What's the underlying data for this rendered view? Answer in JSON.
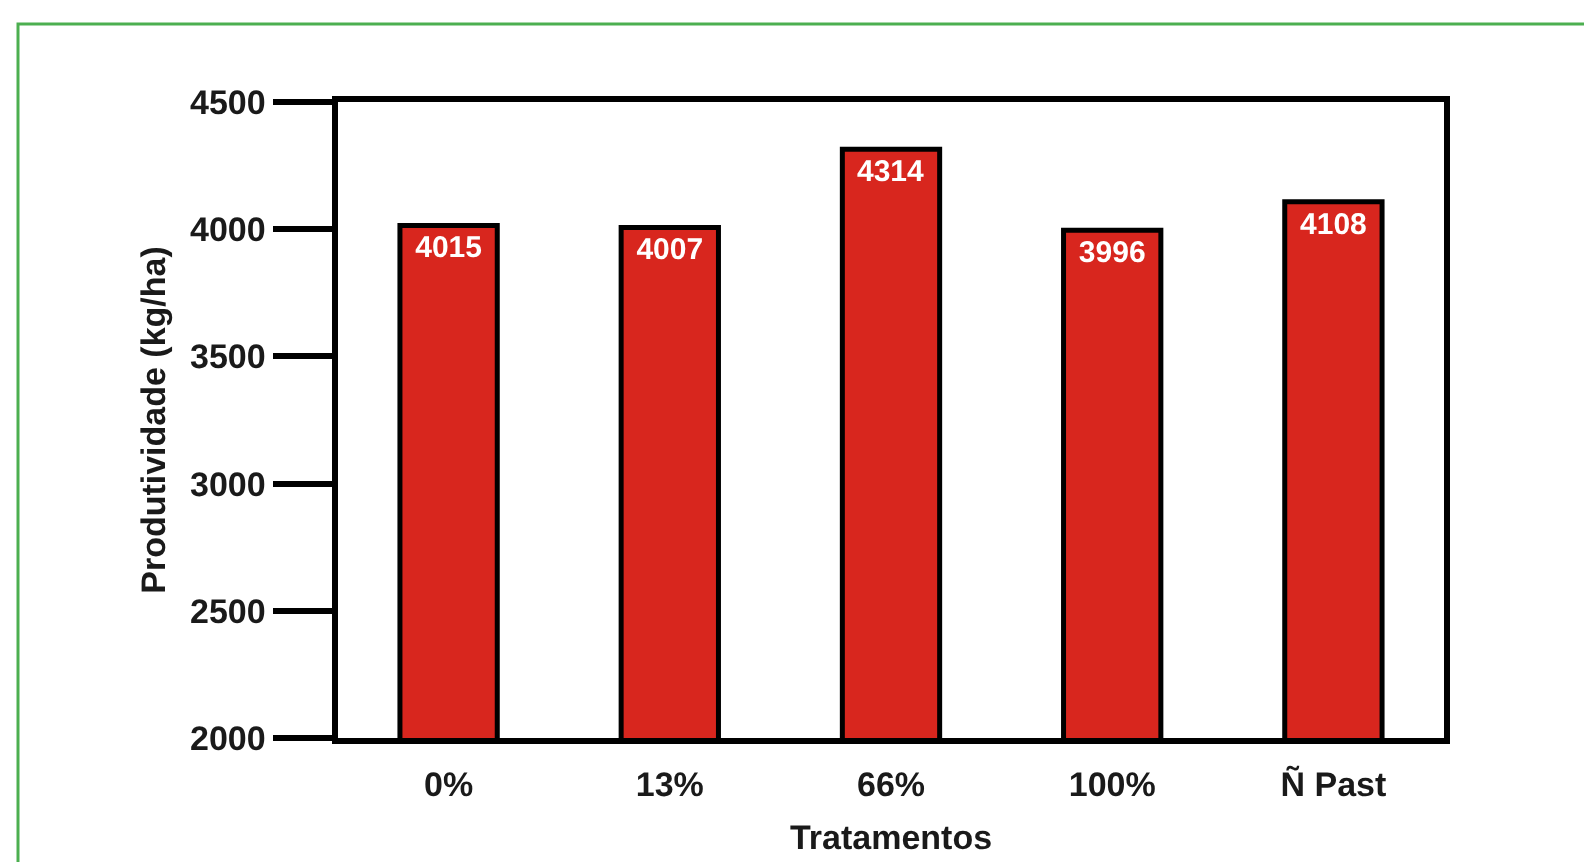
{
  "chart_data": {
    "type": "bar",
    "xlabel": "Tratamentos",
    "ylabel": "Produtividade (kg/ha)",
    "categories": [
      "0%",
      "13%",
      "66%",
      "100%",
      "Ñ Past"
    ],
    "values": [
      4015,
      4007,
      4314,
      3996,
      4108
    ],
    "color": "#d8261e",
    "ylim": [
      2000,
      4500
    ],
    "yticks": [
      2000,
      2500,
      3000,
      3500,
      4000,
      4500
    ],
    "data_labels": true
  }
}
